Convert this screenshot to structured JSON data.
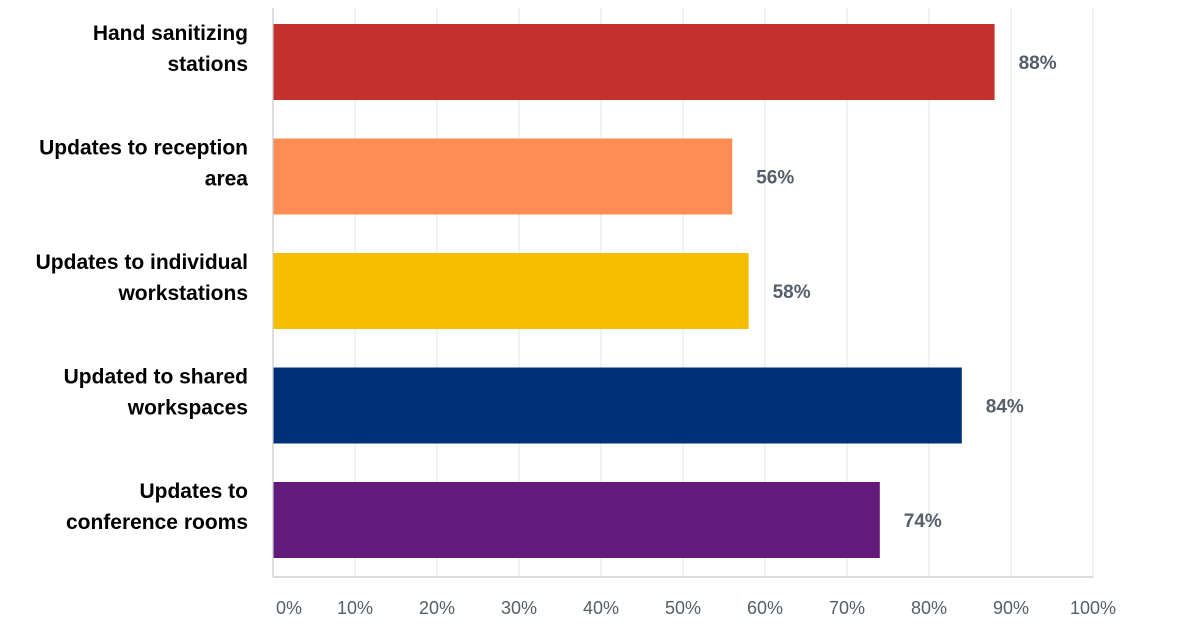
{
  "chart_data": {
    "type": "bar",
    "orientation": "horizontal",
    "title": "",
    "xlabel": "",
    "ylabel": "",
    "categories": [
      [
        "Hand sanitizing",
        "stations"
      ],
      [
        "Updates to reception",
        "area"
      ],
      [
        "Updates to individual",
        "workstations"
      ],
      [
        "Updated to shared",
        "workspaces"
      ],
      [
        "Updates to",
        "conference rooms"
      ]
    ],
    "values": [
      88,
      56,
      58,
      84,
      74
    ],
    "value_labels": [
      "88%",
      "56%",
      "58%",
      "84%",
      "74%"
    ],
    "bar_colors": [
      "#c5322d",
      "#ff8c52",
      "#f5be00",
      "#003078",
      "#621a7b"
    ],
    "xlim": [
      0,
      100
    ],
    "xticks": [
      0,
      10,
      20,
      30,
      40,
      50,
      60,
      70,
      80,
      90,
      100
    ],
    "xtick_labels": [
      "0%",
      "10%",
      "20%",
      "30%",
      "40%",
      "50%",
      "60%",
      "70%",
      "80%",
      "90%",
      "100%"
    ],
    "grid": "vertical",
    "legend": "none"
  }
}
